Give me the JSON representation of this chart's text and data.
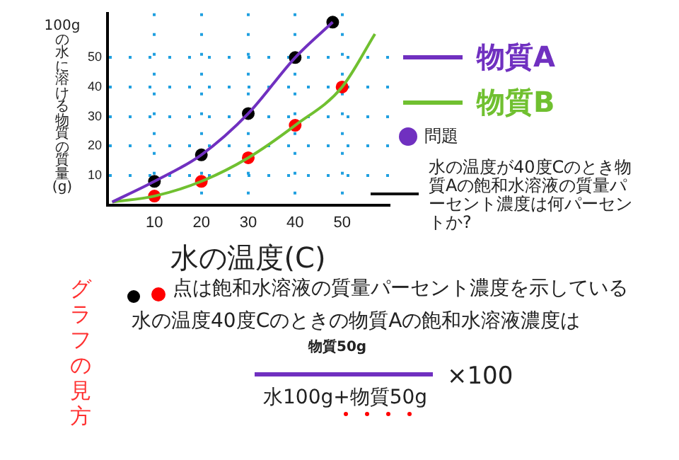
{
  "chart_data": {
    "type": "line",
    "xlabel": "水の温度(C)",
    "ylabel": "100gの水に溶ける物質の質量(g)",
    "xlim": [
      0,
      60
    ],
    "ylim": [
      0,
      65
    ],
    "xticks": [
      10,
      20,
      30,
      40,
      50
    ],
    "yticks": [
      10,
      20,
      30,
      40,
      50
    ],
    "grid": true,
    "legend": "right",
    "series": [
      {
        "name": "物質A",
        "marker": "none",
        "color": "#7030c0",
        "x": [
          1,
          10,
          20,
          30,
          40,
          48
        ],
        "values": [
          1,
          8,
          17,
          31,
          50,
          62
        ]
      },
      {
        "name": "物質B",
        "marker": "none",
        "color": "#70c030",
        "x": [
          1,
          10,
          20,
          30,
          40,
          50,
          57
        ],
        "values": [
          1,
          3,
          8,
          16,
          27,
          40,
          58
        ]
      },
      {
        "type": "scatter",
        "marker": "circle",
        "color": "#000000",
        "x": [
          10,
          20,
          30,
          40,
          48
        ],
        "values": [
          8,
          17,
          31,
          50,
          62
        ]
      },
      {
        "type": "scatter",
        "marker": "circle",
        "color": "#ff0000",
        "x": [
          10,
          20,
          30,
          40,
          50
        ],
        "values": [
          3,
          8,
          16,
          27,
          40
        ]
      }
    ],
    "annotations": [
      "問題",
      "水の温度が40度Cのとき物質Aの飽和水溶液の質量パーセント濃度は何パーセントか?",
      "点は飽和水溶液の質量パーセント濃度を示している",
      "水の温度40度Cのときの物質Aの飽和水溶液濃度は",
      "物質50g",
      "水100g+物質50g",
      "×100",
      "グラフの見方"
    ]
  }
}
